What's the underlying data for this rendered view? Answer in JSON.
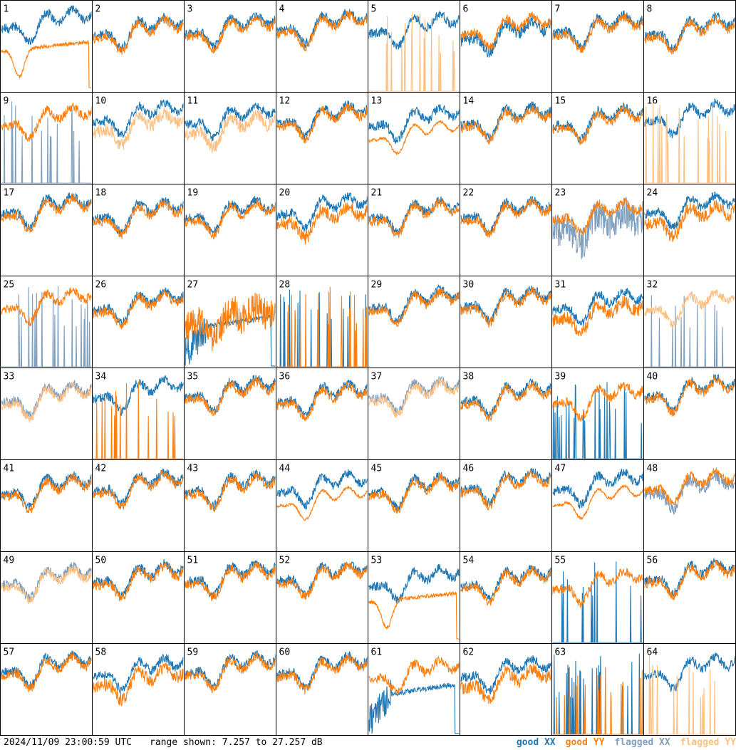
{
  "footer": {
    "timestamp": "2024/11/09 23:00:59 UTC",
    "range_text": "range shown: 7.257 to 27.257 dB"
  },
  "legend": [
    {
      "label": "good XX",
      "color": "#1f77b4"
    },
    {
      "label": "good YY",
      "color": "#ff7f0e"
    },
    {
      "label": "flagged XX",
      "color": "#7f9fbf"
    },
    {
      "label": "flagged YY",
      "color": "#ffbf80"
    }
  ],
  "chart_data": {
    "type": "line",
    "ylim": [
      7.257,
      27.257
    ],
    "grid_rows": 8,
    "grid_cols": 8,
    "panels": [
      {
        "label": "1",
        "xx": "good",
        "yy": "good",
        "xx_mode": "normal",
        "yy_mode": "dip"
      },
      {
        "label": "2",
        "xx": "good",
        "yy": "good",
        "xx_mode": "normal",
        "yy_mode": "normal"
      },
      {
        "label": "3",
        "xx": "good",
        "yy": "good",
        "xx_mode": "normal",
        "yy_mode": "normal"
      },
      {
        "label": "4",
        "xx": "good",
        "yy": "good",
        "xx_mode": "normal",
        "yy_mode": "normal"
      },
      {
        "label": "5",
        "xx": "good",
        "yy": "flagged",
        "xx_mode": "normal",
        "yy_mode": "spiky"
      },
      {
        "label": "6",
        "xx": "good",
        "yy": "good",
        "xx_mode": "low",
        "yy_mode": "normal"
      },
      {
        "label": "7",
        "xx": "good",
        "yy": "good",
        "xx_mode": "normal",
        "yy_mode": "normal"
      },
      {
        "label": "8",
        "xx": "good",
        "yy": "good",
        "xx_mode": "normal",
        "yy_mode": "normal"
      },
      {
        "label": "9",
        "xx": "flagged",
        "yy": "good",
        "xx_mode": "spiky",
        "yy_mode": "normal"
      },
      {
        "label": "10",
        "xx": "good",
        "yy": "flagged",
        "xx_mode": "normal",
        "yy_mode": "low"
      },
      {
        "label": "11",
        "xx": "good",
        "yy": "flagged",
        "xx_mode": "normal",
        "yy_mode": "low"
      },
      {
        "label": "12",
        "xx": "good",
        "yy": "good",
        "xx_mode": "normal",
        "yy_mode": "normal"
      },
      {
        "label": "13",
        "xx": "good",
        "yy": "good",
        "xx_mode": "normal",
        "yy_mode": "smooth"
      },
      {
        "label": "14",
        "xx": "good",
        "yy": "good",
        "xx_mode": "normal",
        "yy_mode": "normal"
      },
      {
        "label": "15",
        "xx": "good",
        "yy": "good",
        "xx_mode": "normal",
        "yy_mode": "normal"
      },
      {
        "label": "16",
        "xx": "good",
        "yy": "flagged",
        "xx_mode": "normal",
        "yy_mode": "spiky"
      },
      {
        "label": "17",
        "xx": "good",
        "yy": "good",
        "xx_mode": "normal",
        "yy_mode": "normal"
      },
      {
        "label": "18",
        "xx": "good",
        "yy": "good",
        "xx_mode": "normal",
        "yy_mode": "normal"
      },
      {
        "label": "19",
        "xx": "good",
        "yy": "good",
        "xx_mode": "normal",
        "yy_mode": "normal"
      },
      {
        "label": "20",
        "xx": "good",
        "yy": "good",
        "xx_mode": "normal",
        "yy_mode": "low"
      },
      {
        "label": "21",
        "xx": "good",
        "yy": "good",
        "xx_mode": "normal",
        "yy_mode": "normal"
      },
      {
        "label": "22",
        "xx": "good",
        "yy": "good",
        "xx_mode": "normal",
        "yy_mode": "normal"
      },
      {
        "label": "23",
        "xx": "flagged",
        "yy": "good",
        "xx_mode": "noisy",
        "yy_mode": "normal"
      },
      {
        "label": "24",
        "xx": "good",
        "yy": "good",
        "xx_mode": "normal",
        "yy_mode": "low"
      },
      {
        "label": "25",
        "xx": "flagged",
        "yy": "good",
        "xx_mode": "spiky",
        "yy_mode": "normal"
      },
      {
        "label": "26",
        "xx": "good",
        "yy": "good",
        "xx_mode": "normal",
        "yy_mode": "normal"
      },
      {
        "label": "27",
        "xx": "good",
        "yy": "good",
        "xx_mode": "ramp",
        "yy_mode": "noisy"
      },
      {
        "label": "28",
        "xx": "good",
        "yy": "good",
        "xx_mode": "spiky",
        "yy_mode": "spiky"
      },
      {
        "label": "29",
        "xx": "good",
        "yy": "good",
        "xx_mode": "normal",
        "yy_mode": "normal"
      },
      {
        "label": "30",
        "xx": "good",
        "yy": "good",
        "xx_mode": "normal",
        "yy_mode": "normal"
      },
      {
        "label": "31",
        "xx": "good",
        "yy": "good",
        "xx_mode": "normal",
        "yy_mode": "low"
      },
      {
        "label": "32",
        "xx": "flagged",
        "yy": "flagged",
        "xx_mode": "spiky",
        "yy_mode": "normal"
      },
      {
        "label": "33",
        "xx": "flagged",
        "yy": "flagged",
        "xx_mode": "normal",
        "yy_mode": "normal"
      },
      {
        "label": "34",
        "xx": "good",
        "yy": "good",
        "xx_mode": "normal",
        "yy_mode": "spiky"
      },
      {
        "label": "35",
        "xx": "good",
        "yy": "good",
        "xx_mode": "normal",
        "yy_mode": "normal"
      },
      {
        "label": "36",
        "xx": "good",
        "yy": "good",
        "xx_mode": "normal",
        "yy_mode": "normal"
      },
      {
        "label": "37",
        "xx": "flagged",
        "yy": "flagged",
        "xx_mode": "normal",
        "yy_mode": "normal"
      },
      {
        "label": "38",
        "xx": "good",
        "yy": "good",
        "xx_mode": "normal",
        "yy_mode": "normal"
      },
      {
        "label": "39",
        "xx": "good",
        "yy": "good",
        "xx_mode": "spiky",
        "yy_mode": "normal"
      },
      {
        "label": "40",
        "xx": "good",
        "yy": "good",
        "xx_mode": "normal",
        "yy_mode": "normal"
      },
      {
        "label": "41",
        "xx": "good",
        "yy": "good",
        "xx_mode": "normal",
        "yy_mode": "normal"
      },
      {
        "label": "42",
        "xx": "good",
        "yy": "good",
        "xx_mode": "normal",
        "yy_mode": "normal"
      },
      {
        "label": "43",
        "xx": "good",
        "yy": "good",
        "xx_mode": "normal",
        "yy_mode": "normal"
      },
      {
        "label": "44",
        "xx": "good",
        "yy": "good",
        "xx_mode": "normal",
        "yy_mode": "smooth"
      },
      {
        "label": "45",
        "xx": "good",
        "yy": "good",
        "xx_mode": "normal",
        "yy_mode": "normal"
      },
      {
        "label": "46",
        "xx": "good",
        "yy": "good",
        "xx_mode": "normal",
        "yy_mode": "normal"
      },
      {
        "label": "47",
        "xx": "good",
        "yy": "good",
        "xx_mode": "normal",
        "yy_mode": "smooth"
      },
      {
        "label": "48",
        "xx": "flagged",
        "yy": "good",
        "xx_mode": "low",
        "yy_mode": "normal"
      },
      {
        "label": "49",
        "xx": "flagged",
        "yy": "flagged",
        "xx_mode": "normal",
        "yy_mode": "normal"
      },
      {
        "label": "50",
        "xx": "good",
        "yy": "good",
        "xx_mode": "normal",
        "yy_mode": "normal"
      },
      {
        "label": "51",
        "xx": "good",
        "yy": "good",
        "xx_mode": "normal",
        "yy_mode": "normal"
      },
      {
        "label": "52",
        "xx": "good",
        "yy": "good",
        "xx_mode": "normal",
        "yy_mode": "normal"
      },
      {
        "label": "53",
        "xx": "good",
        "yy": "good",
        "xx_mode": "normal",
        "yy_mode": "dip"
      },
      {
        "label": "54",
        "xx": "good",
        "yy": "good",
        "xx_mode": "normal",
        "yy_mode": "normal"
      },
      {
        "label": "55",
        "xx": "good",
        "yy": "good",
        "xx_mode": "spiky",
        "yy_mode": "normal"
      },
      {
        "label": "56",
        "xx": "good",
        "yy": "good",
        "xx_mode": "normal",
        "yy_mode": "normal"
      },
      {
        "label": "57",
        "xx": "good",
        "yy": "good",
        "xx_mode": "normal",
        "yy_mode": "normal"
      },
      {
        "label": "58",
        "xx": "good",
        "yy": "good",
        "xx_mode": "normal",
        "yy_mode": "low"
      },
      {
        "label": "59",
        "xx": "good",
        "yy": "good",
        "xx_mode": "normal",
        "yy_mode": "normal"
      },
      {
        "label": "60",
        "xx": "good",
        "yy": "good",
        "xx_mode": "normal",
        "yy_mode": "normal"
      },
      {
        "label": "61",
        "xx": "good",
        "yy": "good",
        "xx_mode": "ramp",
        "yy_mode": "normal"
      },
      {
        "label": "62",
        "xx": "good",
        "yy": "good",
        "xx_mode": "normal",
        "yy_mode": "low"
      },
      {
        "label": "63",
        "xx": "good",
        "yy": "good",
        "xx_mode": "spiky",
        "yy_mode": "spiky"
      },
      {
        "label": "64",
        "xx": "good",
        "yy": "flagged",
        "xx_mode": "normal",
        "yy_mode": "spiky"
      }
    ]
  }
}
